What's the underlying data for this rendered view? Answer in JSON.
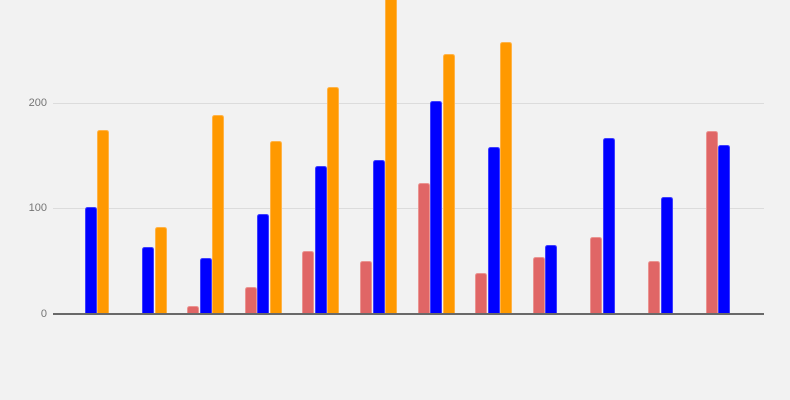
{
  "canvas": {
    "background": "#f2f2f2"
  },
  "chart_data": {
    "type": "bar",
    "title": "",
    "legend": "none",
    "x_axis": {
      "labels_visible": false,
      "num_groups": 12
    },
    "y_axis": {
      "ticks": [
        0,
        100,
        200,
        300
      ],
      "range": [
        0,
        300
      ],
      "label_color": "#757575"
    },
    "grid": {
      "show": true,
      "color": "#dcdcdc",
      "baseline_color": "#696969"
    },
    "series": [
      {
        "name": "red",
        "color": "#e06666",
        "edge": "#ea9491",
        "values": [
          null,
          null,
          8,
          26,
          60,
          50,
          124,
          39,
          54,
          73,
          50,
          173
        ]
      },
      {
        "name": "blue",
        "color": "#0000ff",
        "edge": "#3d3dff",
        "values": [
          101,
          63,
          53,
          95,
          140,
          146,
          202,
          158,
          65,
          167,
          111,
          160
        ]
      },
      {
        "name": "orange",
        "color": "#ff9900",
        "edge": "#ffb347",
        "values": [
          174,
          82,
          188,
          164,
          215,
          300,
          246,
          258,
          null,
          null,
          null,
          null
        ]
      }
    ],
    "notes": "orange bar of group 6 is clipped by the top edge of the image (value >= 300)"
  }
}
